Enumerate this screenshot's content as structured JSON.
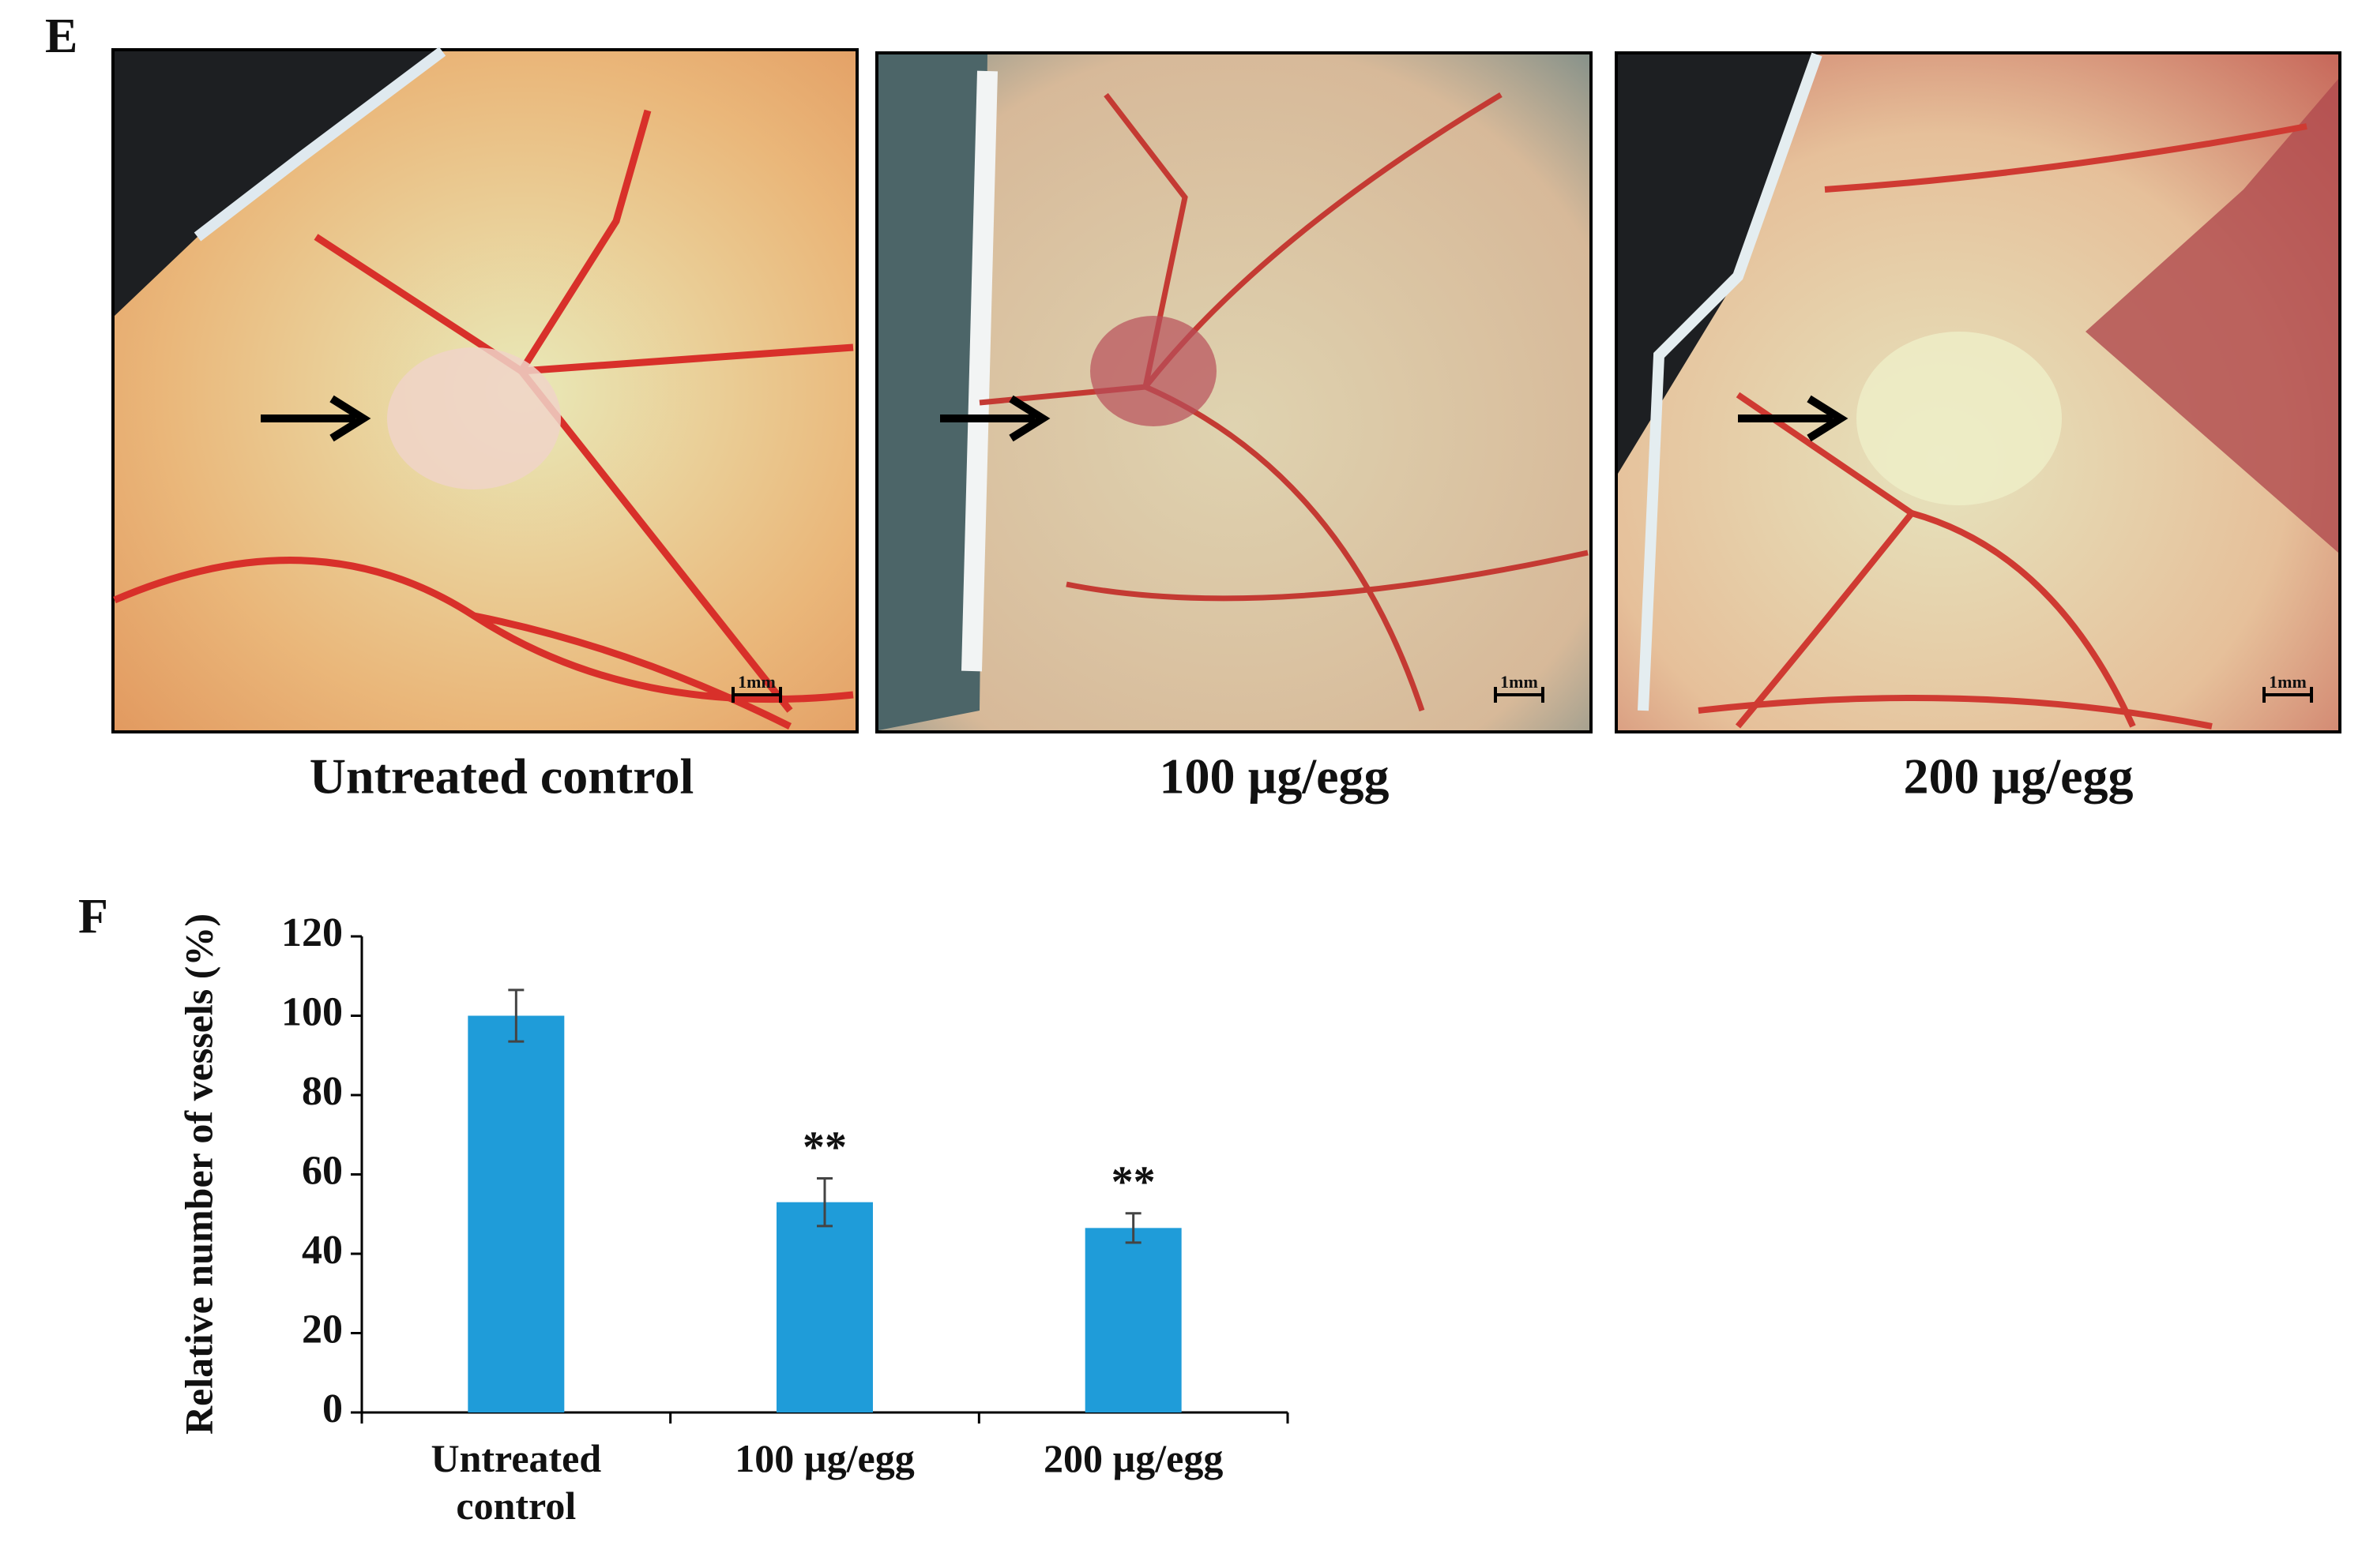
{
  "panel_e": {
    "label": "E",
    "images": [
      {
        "caption": "Untreated control",
        "scale_bar": "1mm"
      },
      {
        "caption": "100 µg/egg",
        "scale_bar": "1mm"
      },
      {
        "caption": "200 µg/egg",
        "scale_bar": "1mm"
      }
    ]
  },
  "panel_f_label": "F",
  "chart_data": {
    "type": "bar",
    "y_label": "Relative number of vessels (%)",
    "categories": [
      "Untreated control",
      "100 µg/egg",
      "200 µg/egg"
    ],
    "values": [
      100,
      53,
      46.5
    ],
    "errors": [
      6.5,
      6,
      3.7
    ],
    "annotations": [
      null,
      "**",
      "**"
    ],
    "color": "#1f9cd9",
    "ylim": [
      0,
      120
    ],
    "yticks": [
      0,
      20,
      40,
      60,
      80,
      100,
      120
    ]
  }
}
